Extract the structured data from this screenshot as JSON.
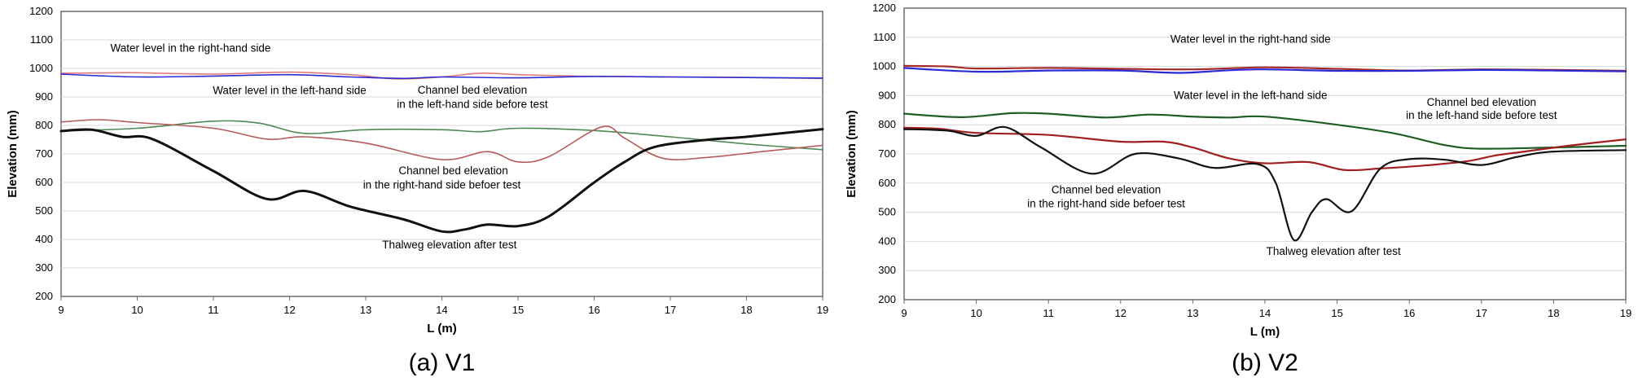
{
  "chart_data": [
    {
      "type": "line",
      "caption": "(a) V1",
      "xlabel": "L (m)",
      "ylabel": "Elevation (mm)",
      "xlim": [
        9,
        19
      ],
      "ylim": [
        200,
        1200
      ],
      "x_ticks": [
        9,
        10,
        11,
        12,
        13,
        14,
        15,
        16,
        17,
        18,
        19
      ],
      "y_ticks": [
        200,
        300,
        400,
        500,
        600,
        700,
        800,
        900,
        1000,
        1100,
        1200
      ],
      "grid": "horizontal",
      "series": [
        {
          "color": "#e07a7a",
          "width": 1.6,
          "points": [
            [
              9,
              983
            ],
            [
              9.5,
              984
            ],
            [
              10,
              985
            ],
            [
              11,
              980
            ],
            [
              12,
              987
            ],
            [
              12.8,
              978
            ],
            [
              13.4,
              963
            ],
            [
              14,
              970
            ],
            [
              14.5,
              983
            ],
            [
              15,
              978
            ],
            [
              15.5,
              975
            ],
            [
              16,
              972
            ],
            [
              17,
              970
            ],
            [
              18,
              968
            ],
            [
              19,
              965
            ]
          ]
        },
        {
          "color": "#2b2bd6",
          "width": 1.6,
          "points": [
            [
              9,
              980
            ],
            [
              10,
              970
            ],
            [
              11,
              973
            ],
            [
              12,
              978
            ],
            [
              12.8,
              970
            ],
            [
              13.5,
              965
            ],
            [
              14,
              970
            ],
            [
              15,
              967
            ],
            [
              16,
              972
            ],
            [
              17,
              970
            ],
            [
              18,
              968
            ],
            [
              19,
              966
            ]
          ]
        },
        {
          "color": "#4f8a52",
          "width": 1.6,
          "points": [
            [
              9,
              780
            ],
            [
              10,
              790
            ],
            [
              11,
              815
            ],
            [
              11.6,
              808
            ],
            [
              12.2,
              772
            ],
            [
              13,
              785
            ],
            [
              14,
              785
            ],
            [
              14.5,
              778
            ],
            [
              15,
              790
            ],
            [
              16,
              782
            ],
            [
              17,
              760
            ],
            [
              18,
              735
            ],
            [
              19,
              715
            ]
          ]
        },
        {
          "color": "#b65a5a",
          "width": 1.6,
          "points": [
            [
              9,
              812
            ],
            [
              9.5,
              820
            ],
            [
              10,
              810
            ],
            [
              11,
              790
            ],
            [
              11.7,
              752
            ],
            [
              12.2,
              760
            ],
            [
              13,
              738
            ],
            [
              14,
              680
            ],
            [
              14.6,
              708
            ],
            [
              15,
              672
            ],
            [
              15.4,
              690
            ],
            [
              16.1,
              795
            ],
            [
              16.4,
              755
            ],
            [
              16.9,
              685
            ],
            [
              17.5,
              688
            ],
            [
              18.2,
              708
            ],
            [
              19,
              730
            ]
          ]
        },
        {
          "color": "#111111",
          "width": 3,
          "points": [
            [
              9,
              780
            ],
            [
              9.4,
              785
            ],
            [
              9.8,
              760
            ],
            [
              10.2,
              752
            ],
            [
              11,
              640
            ],
            [
              11.7,
              542
            ],
            [
              12.2,
              570
            ],
            [
              12.8,
              515
            ],
            [
              13.5,
              470
            ],
            [
              14,
              428
            ],
            [
              14.3,
              435
            ],
            [
              14.6,
              452
            ],
            [
              15,
              447
            ],
            [
              15.4,
              480
            ],
            [
              16,
              600
            ],
            [
              16.4,
              672
            ],
            [
              16.8,
              725
            ],
            [
              17.5,
              750
            ],
            [
              18,
              760
            ],
            [
              19,
              787
            ]
          ]
        }
      ],
      "annotations": [
        {
          "text": "Water level in the right-hand side",
          "x": 10.7,
          "y": 1058
        },
        {
          "text": "Water level in the left-hand side",
          "x": 12.0,
          "y": 910
        },
        {
          "text": "Channel bed elevation",
          "x": 14.4,
          "y": 912
        },
        {
          "text": "in the left-hand side before test",
          "x": 14.4,
          "y": 862
        },
        {
          "text": "Channel bed elevation",
          "x": 14.15,
          "y": 628
        },
        {
          "text": "in the right-hand side befoer test",
          "x": 14.0,
          "y": 578
        },
        {
          "text": "Thalweg elevation after test",
          "x": 14.1,
          "y": 368
        }
      ]
    },
    {
      "type": "line",
      "caption": "(b) V2",
      "xlabel": "L (m)",
      "ylabel": "Elevation (mm)",
      "xlim": [
        9,
        19
      ],
      "ylim": [
        200,
        1200
      ],
      "x_ticks": [
        9,
        10,
        11,
        12,
        13,
        14,
        15,
        16,
        17,
        18,
        19
      ],
      "y_ticks": [
        200,
        300,
        400,
        500,
        600,
        700,
        800,
        900,
        1000,
        1100,
        1200
      ],
      "grid": "horizontal",
      "series": [
        {
          "color": "#a52a2a",
          "width": 2.2,
          "points": [
            [
              9,
              1002
            ],
            [
              9.6,
              1000
            ],
            [
              10,
              993
            ],
            [
              11,
              995
            ],
            [
              12,
              992
            ],
            [
              13,
              990
            ],
            [
              14,
              997
            ],
            [
              15,
              992
            ],
            [
              16,
              986
            ],
            [
              17,
              990
            ],
            [
              18,
              988
            ],
            [
              19,
              985
            ]
          ]
        },
        {
          "color": "#2b2bd6",
          "width": 2.2,
          "points": [
            [
              9,
              995
            ],
            [
              10,
              982
            ],
            [
              11,
              986
            ],
            [
              12,
              986
            ],
            [
              12.8,
              978
            ],
            [
              13.5,
              987
            ],
            [
              14,
              990
            ],
            [
              15,
              985
            ],
            [
              16,
              985
            ],
            [
              17,
              988
            ],
            [
              18,
              986
            ],
            [
              19,
              983
            ]
          ]
        },
        {
          "color": "#1f5e23",
          "width": 2.2,
          "points": [
            [
              9,
              838
            ],
            [
              9.8,
              826
            ],
            [
              10.5,
              840
            ],
            [
              11,
              838
            ],
            [
              11.8,
              825
            ],
            [
              12.4,
              835
            ],
            [
              13,
              828
            ],
            [
              13.5,
              825
            ],
            [
              14,
              828
            ],
            [
              15,
              800
            ],
            [
              15.8,
              770
            ],
            [
              16.5,
              730
            ],
            [
              17,
              718
            ],
            [
              18,
              722
            ],
            [
              19,
              728
            ]
          ]
        },
        {
          "color": "#a02020",
          "width": 2.2,
          "points": [
            [
              9,
              790
            ],
            [
              9.5,
              786
            ],
            [
              10,
              772
            ],
            [
              11,
              765
            ],
            [
              12,
              742
            ],
            [
              12.6,
              742
            ],
            [
              13,
              722
            ],
            [
              13.5,
              685
            ],
            [
              14,
              668
            ],
            [
              14.6,
              672
            ],
            [
              15.1,
              645
            ],
            [
              15.6,
              650
            ],
            [
              16.2,
              660
            ],
            [
              16.8,
              675
            ],
            [
              17.2,
              695
            ],
            [
              17.6,
              708
            ],
            [
              18.2,
              728
            ],
            [
              19,
              750
            ]
          ]
        },
        {
          "color": "#111111",
          "width": 2.2,
          "points": [
            [
              9,
              785
            ],
            [
              9.6,
              780
            ],
            [
              10,
              762
            ],
            [
              10.4,
              792
            ],
            [
              10.9,
              722
            ],
            [
              11.6,
              632
            ],
            [
              12.2,
              700
            ],
            [
              12.8,
              685
            ],
            [
              13.3,
              652
            ],
            [
              13.9,
              665
            ],
            [
              14.15,
              600
            ],
            [
              14.4,
              405
            ],
            [
              14.65,
              500
            ],
            [
              14.85,
              545
            ],
            [
              15.2,
              503
            ],
            [
              15.6,
              650
            ],
            [
              16,
              682
            ],
            [
              16.5,
              680
            ],
            [
              17,
              662
            ],
            [
              17.5,
              690
            ],
            [
              18,
              708
            ],
            [
              19,
              713
            ]
          ]
        }
      ],
      "annotations": [
        {
          "text": "Water level in the right-hand side",
          "x": 13.8,
          "y": 1081
        },
        {
          "text": "Water level in the left-hand side",
          "x": 13.8,
          "y": 888
        },
        {
          "text": "Channel bed elevation",
          "x": 17.0,
          "y": 865
        },
        {
          "text": "in the left-hand side before test",
          "x": 17.0,
          "y": 820
        },
        {
          "text": "Channel bed elevation",
          "x": 11.8,
          "y": 565
        },
        {
          "text": "in the right-hand side befoer test",
          "x": 11.8,
          "y": 517
        },
        {
          "text": "Thalweg elevation after test",
          "x": 14.95,
          "y": 353
        }
      ]
    }
  ]
}
